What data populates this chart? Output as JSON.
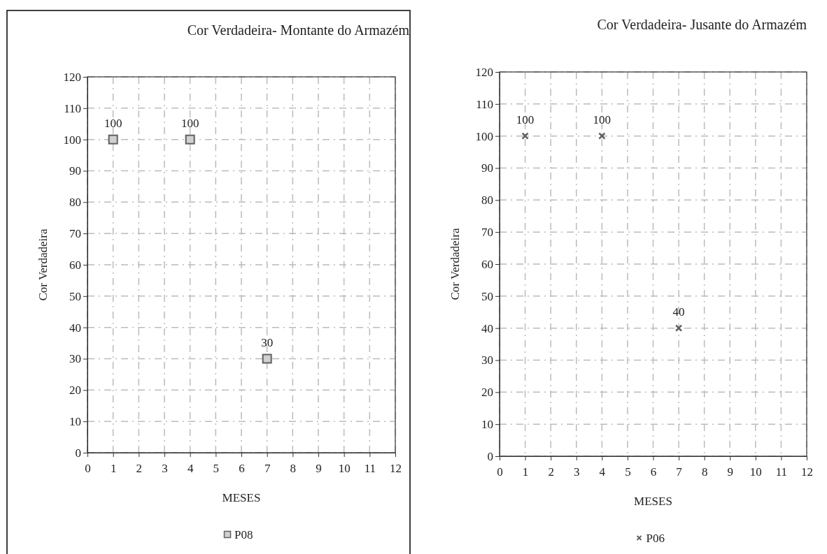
{
  "chart_data": [
    {
      "type": "scatter",
      "title": "Cor Verdadeira- Montante do Armazém",
      "xlabel": "MESES",
      "ylabel": "Cor Verdadeira",
      "x": [
        1,
        4,
        7
      ],
      "series": [
        {
          "name": "P08",
          "color": "#d0d0d0",
          "values": [
            100,
            100,
            30
          ]
        }
      ],
      "xlim": [
        0,
        12
      ],
      "xticks": [
        0,
        1,
        2,
        3,
        4,
        5,
        6,
        7,
        8,
        9,
        10,
        11,
        12
      ],
      "ylim": [
        0,
        120
      ],
      "yticks": [
        0,
        10,
        20,
        30,
        40,
        50,
        60,
        70,
        80,
        90,
        100,
        110,
        120
      ],
      "grid": true,
      "legend": "bottom",
      "marker": "square",
      "data_labels": true
    },
    {
      "type": "scatter",
      "title": "Cor Verdadeira- Jusante do Armazém",
      "xlabel": "MESES",
      "ylabel": "Cor Verdadeira",
      "x": [
        1,
        4,
        7
      ],
      "series": [
        {
          "name": "P06",
          "color": "#606060",
          "values": [
            100,
            100,
            40
          ]
        }
      ],
      "xlim": [
        0,
        12
      ],
      "xticks": [
        0,
        1,
        2,
        3,
        4,
        5,
        6,
        7,
        8,
        9,
        10,
        11,
        12
      ],
      "ylim": [
        0,
        120
      ],
      "yticks": [
        0,
        10,
        20,
        30,
        40,
        50,
        60,
        70,
        80,
        90,
        100,
        110,
        120
      ],
      "grid": true,
      "legend": "bottom",
      "marker": "cross",
      "data_labels": true
    }
  ]
}
